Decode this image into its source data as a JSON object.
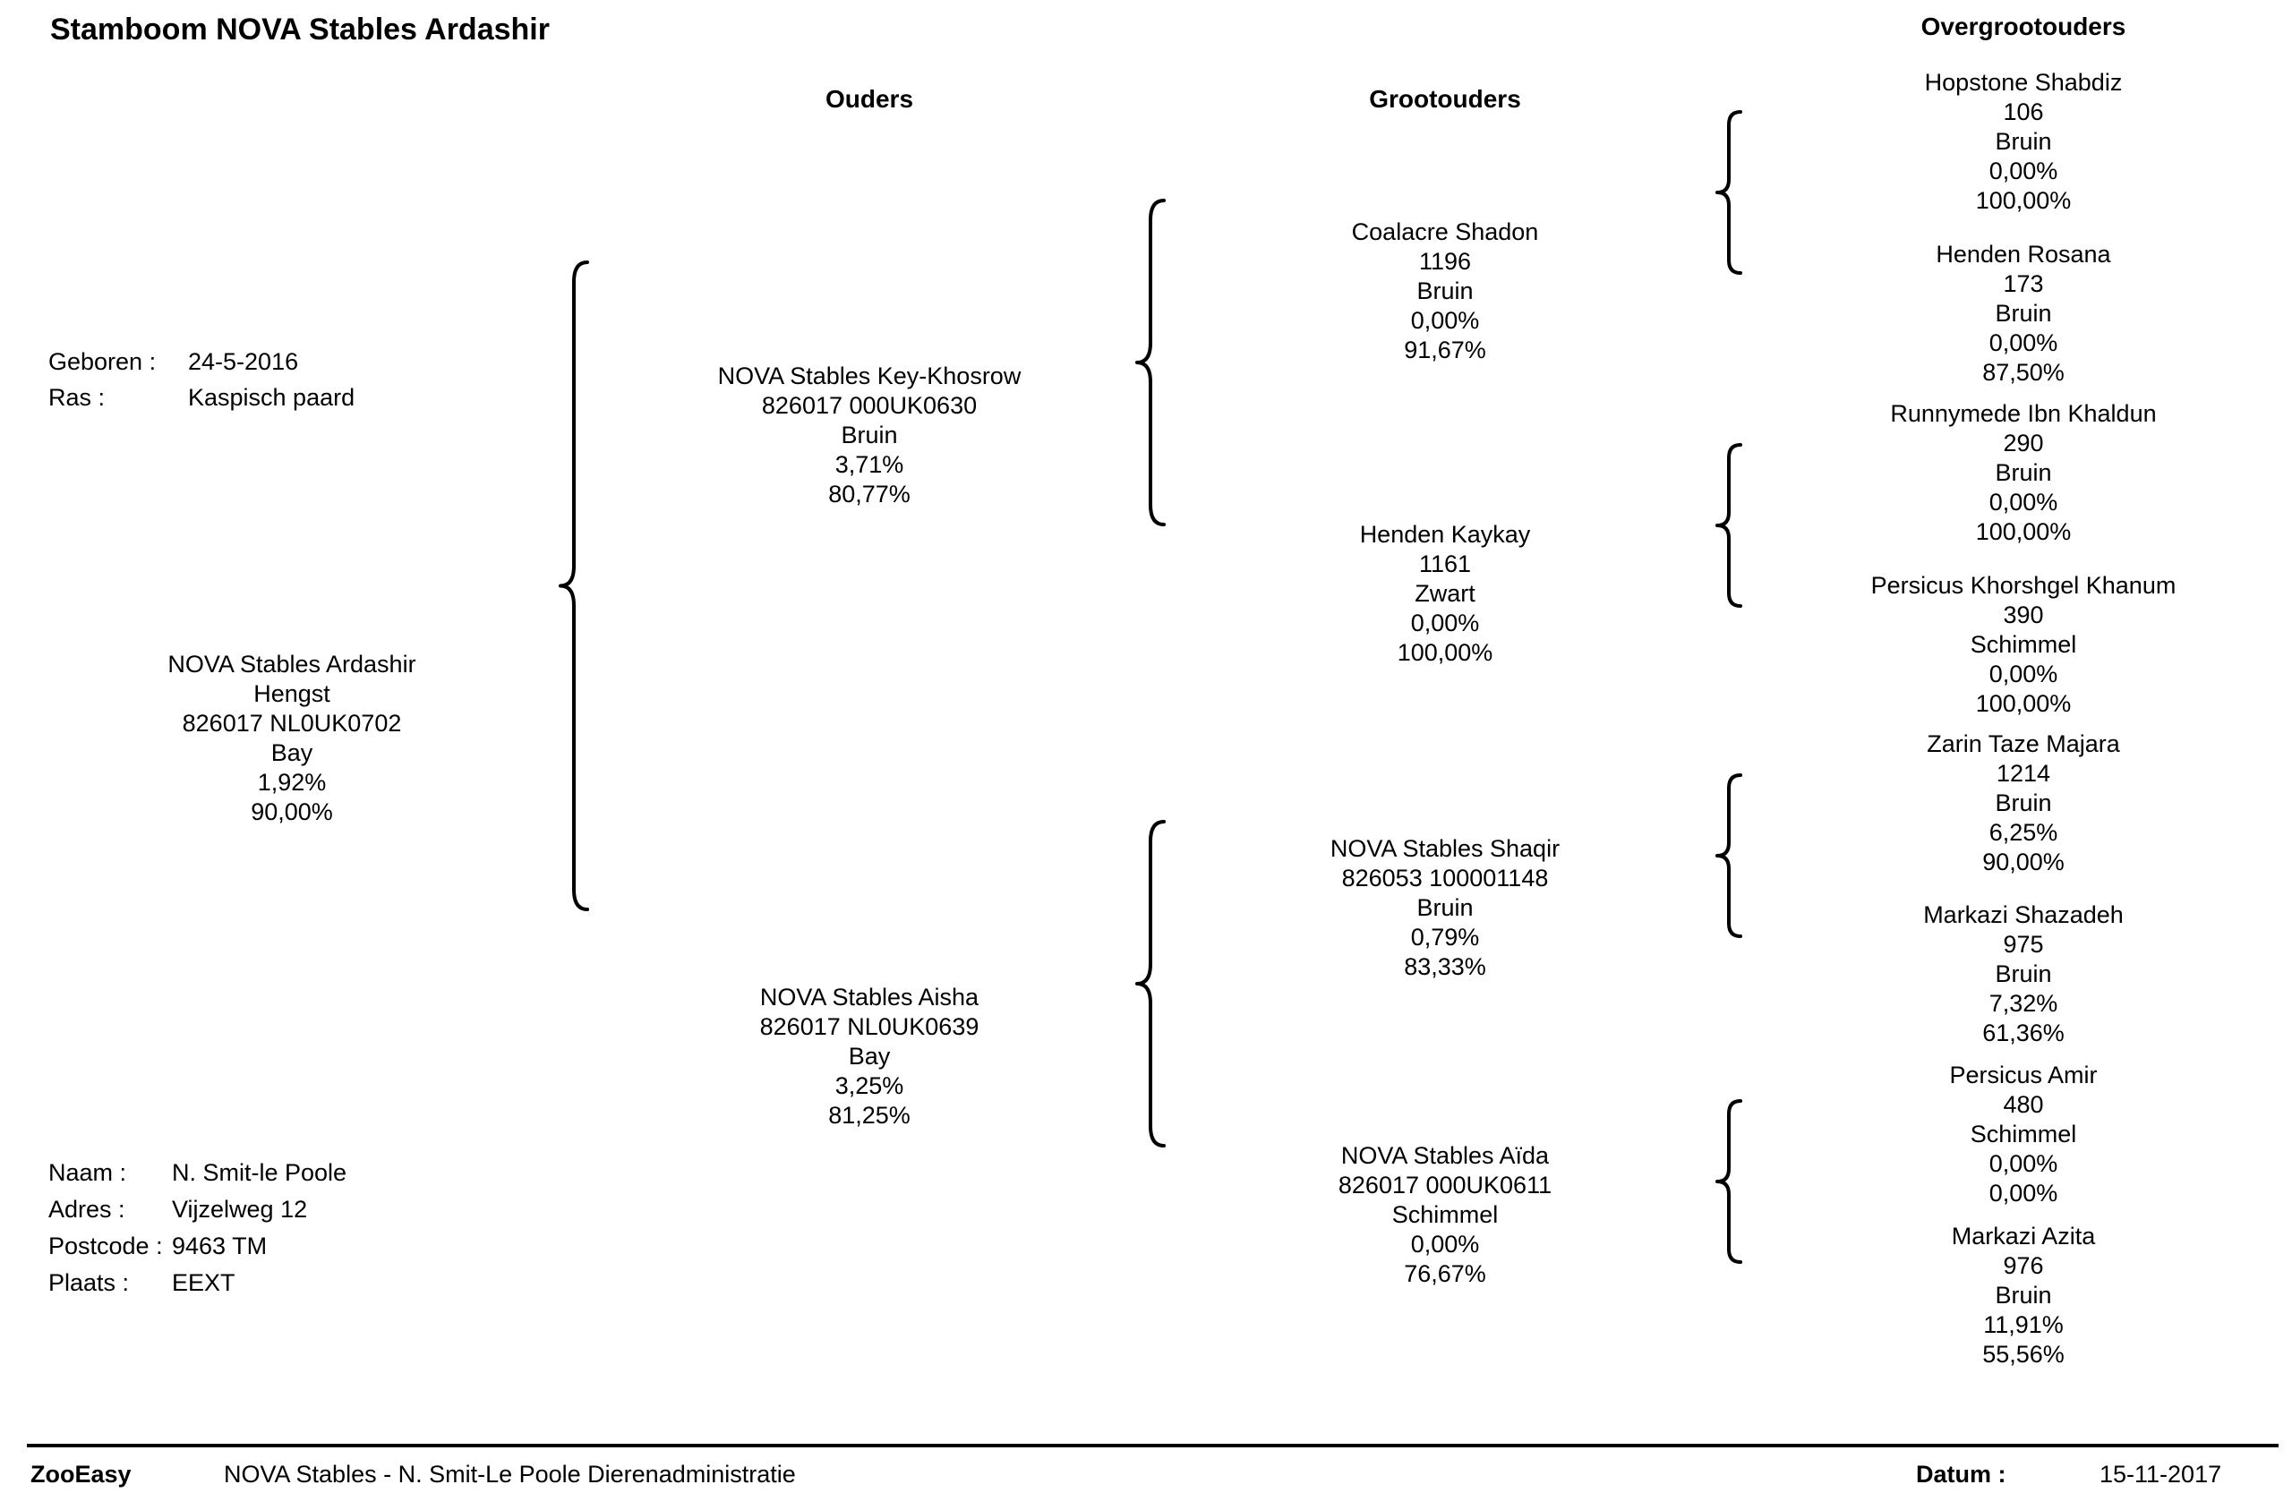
{
  "title": "Stamboom NOVA Stables Ardashir",
  "headers": {
    "parents": "Ouders",
    "grandparents": "Grootouders",
    "great_grandparents": "Overgrootouders"
  },
  "birth_info": {
    "born_label": "Geboren :",
    "born_value": "24-5-2016",
    "breed_label": "Ras :",
    "breed_value": "Kaspisch paard"
  },
  "subject": {
    "name": "NOVA Stables Ardashir",
    "sex": "Hengst",
    "id": "826017 NL0UK0702",
    "color": "Bay",
    "inbreeding": "1,92%",
    "percentage": "90,00%"
  },
  "owner": {
    "name_label": "Naam :",
    "name_value": "N.  Smit-le Poole",
    "address_label": "Adres :",
    "address_value": "Vijzelweg 12",
    "postcode_label": "Postcode :",
    "postcode_value": "9463 TM",
    "city_label": "Plaats :",
    "city_value": "EEXT"
  },
  "parents": [
    {
      "name": "NOVA Stables Key-Khosrow",
      "id": "826017 000UK0630",
      "color": "Bruin",
      "inbreeding": "3,71%",
      "percentage": "80,77%"
    },
    {
      "name": "NOVA Stables Aisha",
      "id": "826017 NL0UK0639",
      "color": "Bay",
      "inbreeding": "3,25%",
      "percentage": "81,25%"
    }
  ],
  "grandparents": [
    {
      "name": "Coalacre Shadon",
      "id": "1196",
      "color": "Bruin",
      "inbreeding": "0,00%",
      "percentage": "91,67%"
    },
    {
      "name": "Henden Kaykay",
      "id": "1161",
      "color": "Zwart",
      "inbreeding": "0,00%",
      "percentage": "100,00%"
    },
    {
      "name": "NOVA Stables Shaqir",
      "id": "826053 100001148",
      "color": "Bruin",
      "inbreeding": "0,79%",
      "percentage": "83,33%"
    },
    {
      "name": "NOVA Stables Aïda",
      "id": "826017 000UK0611",
      "color": "Schimmel",
      "inbreeding": "0,00%",
      "percentage": "76,67%"
    }
  ],
  "great_grandparents": [
    {
      "name": "Hopstone Shabdiz",
      "id": "106",
      "color": "Bruin",
      "inbreeding": "0,00%",
      "percentage": "100,00%"
    },
    {
      "name": "Henden Rosana",
      "id": "173",
      "color": "Bruin",
      "inbreeding": "0,00%",
      "percentage": "87,50%"
    },
    {
      "name": "Runnymede Ibn Khaldun",
      "id": "290",
      "color": "Bruin",
      "inbreeding": "0,00%",
      "percentage": "100,00%"
    },
    {
      "name": "Persicus Khorshgel Khanum",
      "id": "390",
      "color": "Schimmel",
      "inbreeding": "0,00%",
      "percentage": "100,00%"
    },
    {
      "name": "Zarin Taze Majara",
      "id": "1214",
      "color": "Bruin",
      "inbreeding": "6,25%",
      "percentage": "90,00%"
    },
    {
      "name": "Markazi Shazadeh",
      "id": "975",
      "color": "Bruin",
      "inbreeding": "7,32%",
      "percentage": "61,36%"
    },
    {
      "name": "Persicus Amir",
      "id": "480",
      "color": "Schimmel",
      "inbreeding": "0,00%",
      "percentage": "0,00%"
    },
    {
      "name": "Markazi Azita",
      "id": "976",
      "color": "Bruin",
      "inbreeding": "11,91%",
      "percentage": "55,56%"
    }
  ],
  "footer": {
    "brand": "ZooEasy",
    "description": "NOVA Stables - N. Smit-Le Poole Dierenadministratie",
    "date_label": "Datum :",
    "date_value": "15-11-2017"
  }
}
